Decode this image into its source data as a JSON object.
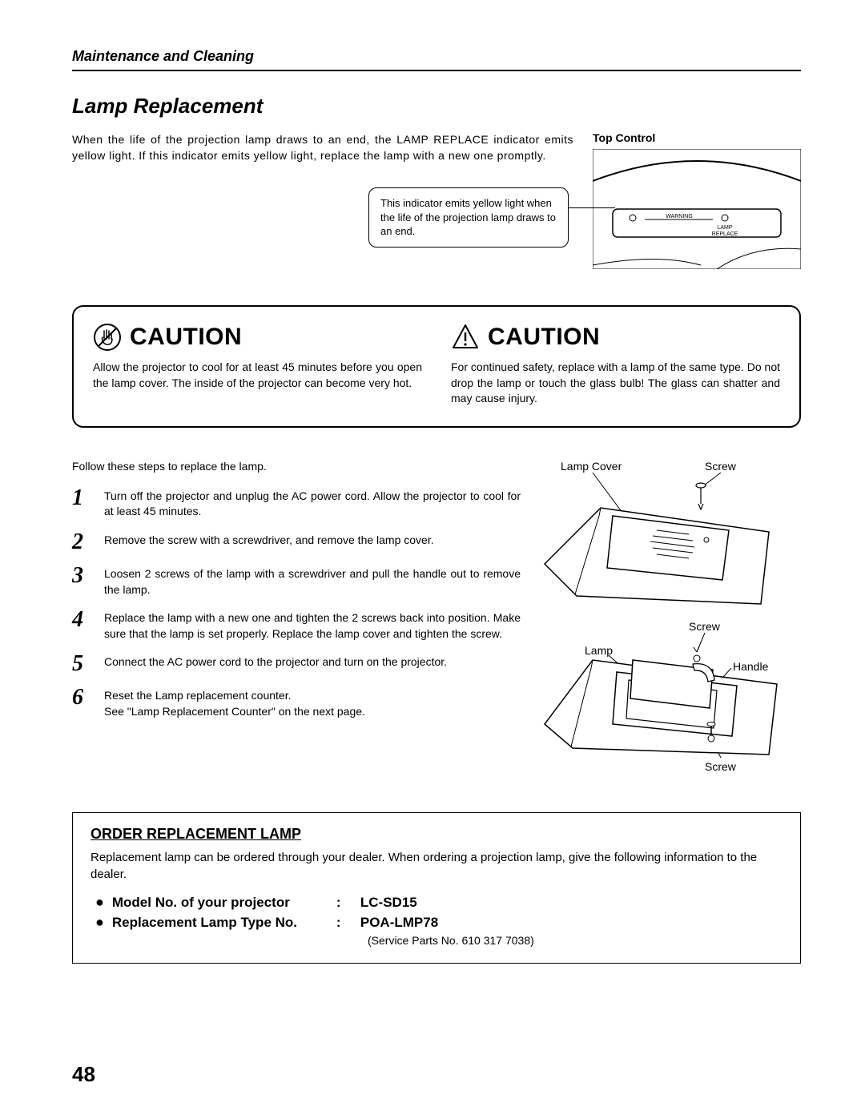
{
  "breadcrumb": "Maintenance and Cleaning",
  "section_title": "Lamp Replacement",
  "intro": "When the life of the projection lamp draws to an end, the LAMP REPLACE indicator emits yellow light. If this indicator emits yellow light, replace the lamp with a new one promptly.",
  "top_control_label": "Top Control",
  "callout": "This indicator emits yellow light when the life of the projection lamp draws to an end.",
  "panel": {
    "warning": "WARNING",
    "lamp_replace_1": "LAMP",
    "lamp_replace_2": "REPLACE"
  },
  "caution_word": "CAUTION",
  "caution_left": "Allow the projector to cool for at least 45 minutes before you open the lamp cover. The inside of the projector can become very hot.",
  "caution_right": "For continued safety, replace with a lamp of the same type. Do not drop the lamp or touch the glass bulb! The glass can shatter and may cause injury.",
  "steps_lead": "Follow these steps to replace the lamp.",
  "steps": [
    "Turn off the projector and unplug the AC power cord. Allow the projector to cool for at least 45 minutes.",
    "Remove the screw with a screwdriver, and remove the lamp cover.",
    "Loosen 2 screws of the lamp with a screwdriver and pull the handle out to remove the lamp.",
    "Replace the lamp with a new one and tighten the 2 screws back into position. Make sure that the lamp is set properly. Replace the lamp cover and tighten the screw.",
    "Connect the AC power cord to the projector and turn on the projector.",
    "Reset the Lamp replacement counter.\nSee \"Lamp Replacement Counter\" on the next page."
  ],
  "diag_labels": {
    "lamp_cover": "Lamp Cover",
    "screw": "Screw",
    "lamp": "Lamp",
    "handle": "Handle"
  },
  "order": {
    "title": "ORDER REPLACEMENT LAMP",
    "text": "Replacement lamp can be ordered through your dealer. When ordering a projection lamp, give the following information to the dealer.",
    "model_label": "Model No. of your projector",
    "model_value": "LC-SD15",
    "type_label": "Replacement Lamp Type No.",
    "type_value": "POA-LMP78",
    "service": "(Service Parts No. 610 317 7038)"
  },
  "page": "48"
}
